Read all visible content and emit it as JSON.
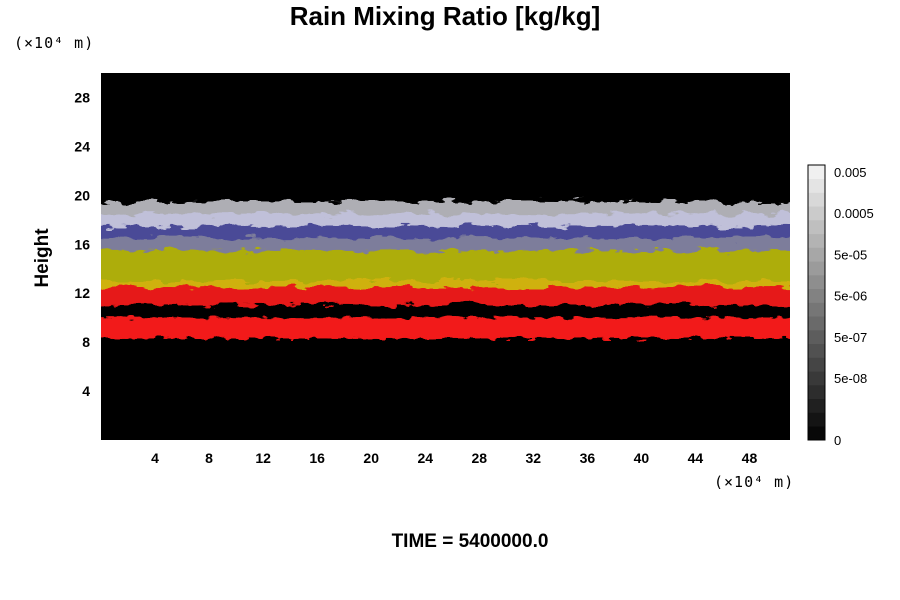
{
  "chart_data": {
    "type": "heatmap",
    "title": "Rain Mixing Ratio [kg/kg]",
    "ylabel": "Height",
    "y_unit": "(×10⁴ m)",
    "x_unit": "(×10⁴ m)",
    "xlim": [
      0,
      51
    ],
    "ylim": [
      0,
      30
    ],
    "x_ticks": [
      "4",
      "8",
      "12",
      "16",
      "20",
      "24",
      "28",
      "32",
      "36",
      "40",
      "44",
      "48"
    ],
    "y_ticks": [
      "4",
      "8",
      "12",
      "16",
      "20",
      "24",
      "28"
    ],
    "colorbar": {
      "tick_labels": [
        "0.005",
        "0.0005",
        "5e-05",
        "5e-06",
        "5e-07",
        "5e-08",
        "0"
      ],
      "tick_levels": [
        19,
        16,
        13,
        10,
        7,
        4,
        0
      ],
      "levels": 20
    },
    "layers": [
      {
        "color": "#e8e8f0",
        "y_range": [
          17.5,
          19.5
        ]
      },
      {
        "color": "#6a6ad8",
        "y_range": [
          15.5,
          18.5
        ]
      },
      {
        "color": "#cccc10",
        "y_range": [
          12.5,
          16.5
        ]
      },
      {
        "color": "#ff1a1a",
        "y_range": [
          11,
          13
        ]
      },
      {
        "color": "#ff1a1a",
        "y_range": [
          8.3,
          10
        ]
      }
    ],
    "time_label": "TIME = 5400000.0"
  }
}
